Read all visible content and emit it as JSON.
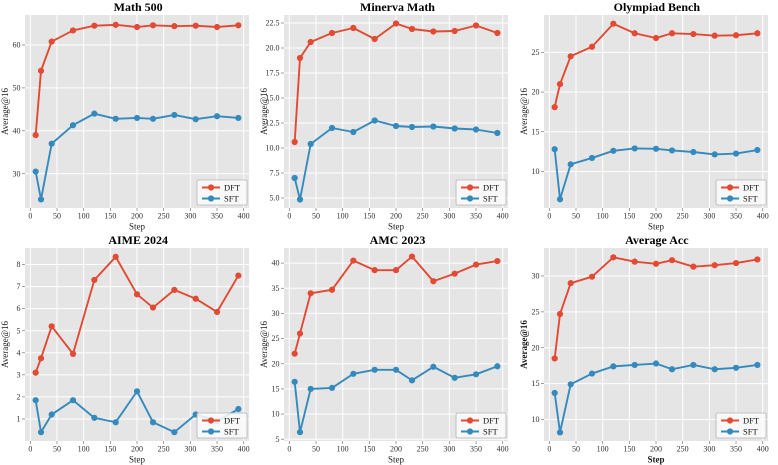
{
  "figure": {
    "panel_background": "#e5e5e5",
    "grid_color": "#ffffff",
    "outer_background": "#ffffff",
    "dft_color": "#e24a33",
    "sft_color": "#348abd",
    "legend_labels": [
      "DFT",
      "SFT"
    ]
  },
  "chart_data": [
    {
      "type": "line",
      "title": "Math 500",
      "xlabel": "Step",
      "ylabel": "Average@16",
      "x": [
        10,
        20,
        40,
        80,
        120,
        160,
        200,
        230,
        270,
        310,
        350,
        390
      ],
      "x_ticks": [
        0,
        50,
        100,
        150,
        200,
        250,
        300,
        350,
        400
      ],
      "xlim": [
        -10,
        410
      ],
      "y_ticks": [
        30,
        40,
        50,
        60
      ],
      "y_tick_labels": [
        "30",
        "40",
        "50",
        "60"
      ],
      "ylim": [
        22,
        67
      ],
      "grid": true,
      "legend_position": "lower right",
      "bold_axis_labels": false,
      "series": [
        {
          "name": "DFT",
          "color": "#e24a33",
          "values": [
            39.0,
            54.0,
            60.8,
            63.4,
            64.5,
            64.7,
            64.2,
            64.6,
            64.4,
            64.5,
            64.2,
            64.6
          ]
        },
        {
          "name": "SFT",
          "color": "#348abd",
          "values": [
            30.5,
            24.0,
            37.0,
            41.3,
            44.0,
            42.8,
            43.0,
            42.8,
            43.7,
            42.7,
            43.4,
            43.0
          ]
        }
      ]
    },
    {
      "type": "line",
      "title": "Minerva Math",
      "xlabel": "Step",
      "ylabel": "Average@16",
      "x": [
        10,
        20,
        40,
        80,
        120,
        160,
        200,
        230,
        270,
        310,
        350,
        390
      ],
      "x_ticks": [
        0,
        50,
        100,
        150,
        200,
        250,
        300,
        350,
        400
      ],
      "xlim": [
        -10,
        410
      ],
      "y_ticks": [
        5.0,
        7.5,
        10.0,
        12.5,
        15.0,
        17.5,
        20.0,
        22.5
      ],
      "y_tick_labels": [
        "5.0",
        "7.5",
        "10.0",
        "12.5",
        "15.0",
        "17.5",
        "20.0",
        "22.5"
      ],
      "ylim": [
        4.0,
        23.3
      ],
      "grid": true,
      "legend_position": "lower right",
      "bold_axis_labels": false,
      "series": [
        {
          "name": "DFT",
          "color": "#e24a33",
          "values": [
            10.6,
            19.0,
            20.6,
            21.5,
            22.0,
            20.9,
            22.45,
            21.9,
            21.65,
            21.7,
            22.25,
            21.5
          ]
        },
        {
          "name": "SFT",
          "color": "#348abd",
          "values": [
            7.0,
            4.85,
            10.4,
            12.0,
            11.6,
            12.75,
            12.2,
            12.1,
            12.15,
            11.95,
            11.85,
            11.5
          ]
        }
      ]
    },
    {
      "type": "line",
      "title": "Olympiad Bench",
      "xlabel": "Step",
      "ylabel": "Average@16",
      "x": [
        10,
        20,
        40,
        80,
        120,
        160,
        200,
        230,
        270,
        310,
        350,
        390
      ],
      "x_ticks": [
        0,
        50,
        100,
        150,
        200,
        250,
        300,
        350,
        400
      ],
      "xlim": [
        -10,
        410
      ],
      "y_ticks": [
        10,
        15,
        20,
        25
      ],
      "y_tick_labels": [
        "10",
        "15",
        "20",
        "25"
      ],
      "ylim": [
        5.4,
        29.7
      ],
      "grid": true,
      "legend_position": "lower right",
      "bold_axis_labels": false,
      "series": [
        {
          "name": "DFT",
          "color": "#e24a33",
          "values": [
            18.1,
            21.0,
            24.5,
            25.7,
            28.6,
            27.4,
            26.8,
            27.4,
            27.3,
            27.1,
            27.15,
            27.4
          ]
        },
        {
          "name": "SFT",
          "color": "#348abd",
          "values": [
            12.8,
            6.5,
            10.9,
            11.7,
            12.6,
            12.9,
            12.85,
            12.65,
            12.45,
            12.15,
            12.25,
            12.7
          ]
        }
      ]
    },
    {
      "type": "line",
      "title": "AIME 2024",
      "xlabel": "Step",
      "ylabel": "Average@16",
      "x": [
        10,
        20,
        40,
        80,
        120,
        160,
        200,
        230,
        270,
        310,
        350,
        390
      ],
      "x_ticks": [
        0,
        50,
        100,
        150,
        200,
        250,
        300,
        350,
        400
      ],
      "xlim": [
        -10,
        410
      ],
      "y_ticks": [
        1,
        2,
        3,
        4,
        5,
        6,
        7,
        8
      ],
      "y_tick_labels": [
        "1",
        "2",
        "3",
        "4",
        "5",
        "6",
        "7",
        "8"
      ],
      "ylim": [
        0.0,
        8.75
      ],
      "grid": true,
      "legend_position": "lower right",
      "bold_axis_labels": false,
      "series": [
        {
          "name": "DFT",
          "color": "#e24a33",
          "values": [
            3.1,
            3.75,
            5.2,
            3.95,
            7.3,
            8.35,
            6.65,
            6.05,
            6.85,
            6.45,
            5.85,
            7.5
          ]
        },
        {
          "name": "SFT",
          "color": "#348abd",
          "values": [
            1.85,
            0.4,
            1.2,
            1.85,
            1.05,
            0.85,
            2.25,
            0.85,
            0.4,
            1.2,
            0.9,
            1.45
          ]
        }
      ]
    },
    {
      "type": "line",
      "title": "AMC 2023",
      "xlabel": "Step",
      "ylabel": "Average@16",
      "x": [
        10,
        20,
        40,
        80,
        120,
        160,
        200,
        230,
        270,
        310,
        350,
        390
      ],
      "x_ticks": [
        0,
        50,
        100,
        150,
        200,
        250,
        300,
        350,
        400
      ],
      "xlim": [
        -10,
        410
      ],
      "y_ticks": [
        5,
        10,
        15,
        20,
        25,
        30,
        35,
        40
      ],
      "y_tick_labels": [
        "5",
        "10",
        "15",
        "20",
        "25",
        "30",
        "35",
        "40"
      ],
      "ylim": [
        4.65,
        43.0
      ],
      "grid": true,
      "legend_position": "lower right",
      "bold_axis_labels": false,
      "series": [
        {
          "name": "DFT",
          "color": "#e24a33",
          "values": [
            22.0,
            26.0,
            34.0,
            34.7,
            40.5,
            38.6,
            38.6,
            41.3,
            36.4,
            37.9,
            39.7,
            40.4
          ]
        },
        {
          "name": "SFT",
          "color": "#348abd",
          "values": [
            16.4,
            6.4,
            15.0,
            15.2,
            18.0,
            18.8,
            18.8,
            16.7,
            19.4,
            17.2,
            17.9,
            19.5
          ]
        }
      ]
    },
    {
      "type": "line",
      "title": "Average Acc",
      "xlabel": "Step",
      "ylabel": "Average@16",
      "x": [
        10,
        20,
        40,
        80,
        120,
        160,
        200,
        230,
        270,
        310,
        350,
        390
      ],
      "x_ticks": [
        0,
        50,
        100,
        150,
        200,
        250,
        300,
        350,
        400
      ],
      "xlim": [
        -10,
        410
      ],
      "y_ticks": [
        10,
        15,
        20,
        25,
        30
      ],
      "y_tick_labels": [
        "10",
        "15",
        "20",
        "25",
        "30"
      ],
      "ylim": [
        7.0,
        33.9
      ],
      "grid": true,
      "legend_position": "lower right",
      "bold_axis_labels": true,
      "series": [
        {
          "name": "DFT",
          "color": "#e24a33",
          "values": [
            18.5,
            24.7,
            29.0,
            29.9,
            32.6,
            32.0,
            31.7,
            32.2,
            31.3,
            31.5,
            31.8,
            32.3
          ]
        },
        {
          "name": "SFT",
          "color": "#348abd",
          "values": [
            13.7,
            8.2,
            14.9,
            16.4,
            17.4,
            17.6,
            17.8,
            17.0,
            17.6,
            17.0,
            17.2,
            17.6
          ]
        }
      ]
    }
  ]
}
